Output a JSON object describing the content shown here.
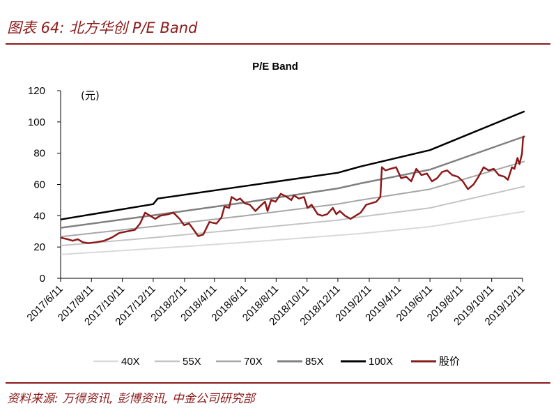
{
  "header": {
    "title": "图表 64:  北方华创 P/E Band"
  },
  "footer": {
    "source": "资料来源: 万得资讯, 彭博资讯, 中金公司研究部"
  },
  "chart_data": {
    "type": "line",
    "title": "P/E Band",
    "unit_label": "(元)",
    "ylim": [
      0,
      120
    ],
    "yticks": [
      0,
      20,
      40,
      60,
      80,
      100,
      120
    ],
    "x_range": [
      "2017-06-11",
      "2019-12-11"
    ],
    "xticks": [
      "2017/6/11",
      "2017/8/11",
      "2017/10/11",
      "2017/12/11",
      "2018/2/11",
      "2018/4/11",
      "2018/6/11",
      "2018/8/11",
      "2018/10/11",
      "2018/12/11",
      "2019/2/11",
      "2019/4/11",
      "2019/6/11",
      "2019/8/11",
      "2019/10/11",
      "2019/12/11"
    ],
    "xtick_dates": [
      "2017-06-11",
      "2017-08-11",
      "2017-10-11",
      "2017-12-11",
      "2018-02-11",
      "2018-04-11",
      "2018-06-11",
      "2018-08-11",
      "2018-10-11",
      "2018-12-11",
      "2019-02-11",
      "2019-04-11",
      "2019-06-11",
      "2019-08-11",
      "2019-10-11",
      "2019-12-11"
    ],
    "grid": false,
    "legend_position": "bottom",
    "series": [
      {
        "name": "40X",
        "color": "#d9d9d9",
        "width": 2,
        "points": [
          [
            "2017-06-11",
            15.2
          ],
          [
            "2017-12-11",
            19.0
          ],
          [
            "2018-06-11",
            23.0
          ],
          [
            "2018-12-11",
            27.5
          ],
          [
            "2019-01-25",
            28.6
          ],
          [
            "2019-06-11",
            33.0
          ],
          [
            "2019-12-15",
            42.8
          ]
        ]
      },
      {
        "name": "55X",
        "color": "#c4c4c4",
        "width": 2,
        "points": [
          [
            "2017-06-11",
            20.9
          ],
          [
            "2017-12-11",
            26.0
          ],
          [
            "2018-06-11",
            31.5
          ],
          [
            "2018-12-11",
            37.2
          ],
          [
            "2019-01-25",
            39.3
          ],
          [
            "2019-06-11",
            45.0
          ],
          [
            "2019-12-15",
            58.8
          ]
        ]
      },
      {
        "name": "70X",
        "color": "#a6a6a6",
        "width": 2,
        "points": [
          [
            "2017-06-11",
            26.6
          ],
          [
            "2017-12-11",
            33.2
          ],
          [
            "2018-06-11",
            40.0
          ],
          [
            "2018-12-11",
            47.5
          ],
          [
            "2019-01-25",
            50.0
          ],
          [
            "2019-06-11",
            57.0
          ],
          [
            "2019-12-15",
            74.8
          ]
        ]
      },
      {
        "name": "85X",
        "color": "#808080",
        "width": 2.5,
        "points": [
          [
            "2017-06-11",
            32.3
          ],
          [
            "2017-12-11",
            40.3
          ],
          [
            "2018-06-11",
            48.5
          ],
          [
            "2018-12-11",
            57.5
          ],
          [
            "2019-01-25",
            60.7
          ],
          [
            "2019-06-11",
            69.5
          ],
          [
            "2019-12-15",
            90.8
          ]
        ]
      },
      {
        "name": "100X",
        "color": "#000000",
        "width": 2.5,
        "points": [
          [
            "2017-06-11",
            37.6
          ],
          [
            "2017-12-11",
            47.4
          ],
          [
            "2017-12-20",
            51.0
          ],
          [
            "2018-06-11",
            59.0
          ],
          [
            "2018-12-11",
            67.5
          ],
          [
            "2019-01-25",
            71.5
          ],
          [
            "2019-06-11",
            82.0
          ],
          [
            "2019-12-15",
            106.8
          ]
        ]
      },
      {
        "name": "股价",
        "color": "#8b1a1a",
        "width": 2.5,
        "points": [
          [
            "2017-06-11",
            26
          ],
          [
            "2017-06-25",
            25
          ],
          [
            "2017-07-05",
            24
          ],
          [
            "2017-07-15",
            25
          ],
          [
            "2017-07-25",
            23
          ],
          [
            "2017-08-05",
            22.5
          ],
          [
            "2017-08-20",
            23
          ],
          [
            "2017-09-05",
            24
          ],
          [
            "2017-09-20",
            26
          ],
          [
            "2017-10-05",
            29
          ],
          [
            "2017-10-20",
            30
          ],
          [
            "2017-11-05",
            31
          ],
          [
            "2017-11-15",
            35
          ],
          [
            "2017-11-25",
            42
          ],
          [
            "2017-12-05",
            40
          ],
          [
            "2017-12-15",
            38
          ],
          [
            "2017-12-25",
            40
          ],
          [
            "2018-01-10",
            41
          ],
          [
            "2018-01-20",
            42
          ],
          [
            "2018-02-01",
            38
          ],
          [
            "2018-02-10",
            34
          ],
          [
            "2018-02-20",
            35
          ],
          [
            "2018-03-01",
            31
          ],
          [
            "2018-03-10",
            27
          ],
          [
            "2018-03-20",
            28
          ],
          [
            "2018-04-01",
            36
          ],
          [
            "2018-04-15",
            35
          ],
          [
            "2018-04-25",
            39
          ],
          [
            "2018-05-01",
            46
          ],
          [
            "2018-05-10",
            45
          ],
          [
            "2018-05-15",
            52
          ],
          [
            "2018-05-25",
            50
          ],
          [
            "2018-06-01",
            51
          ],
          [
            "2018-06-10",
            48
          ],
          [
            "2018-06-20",
            47
          ],
          [
            "2018-07-01",
            43
          ],
          [
            "2018-07-10",
            46
          ],
          [
            "2018-07-20",
            49
          ],
          [
            "2018-07-25",
            43
          ],
          [
            "2018-08-01",
            50
          ],
          [
            "2018-08-10",
            49
          ],
          [
            "2018-08-20",
            54
          ],
          [
            "2018-09-01",
            52
          ],
          [
            "2018-09-10",
            50
          ],
          [
            "2018-09-15",
            53
          ],
          [
            "2018-09-25",
            51
          ],
          [
            "2018-10-05",
            52
          ],
          [
            "2018-10-12",
            45
          ],
          [
            "2018-10-20",
            47
          ],
          [
            "2018-11-01",
            41
          ],
          [
            "2018-11-10",
            40
          ],
          [
            "2018-11-20",
            41
          ],
          [
            "2018-12-01",
            45
          ],
          [
            "2018-12-08",
            41
          ],
          [
            "2018-12-15",
            43
          ],
          [
            "2018-12-25",
            40
          ],
          [
            "2019-01-05",
            38
          ],
          [
            "2019-01-15",
            40
          ],
          [
            "2019-01-25",
            42
          ],
          [
            "2019-02-05",
            47
          ],
          [
            "2019-02-15",
            48
          ],
          [
            "2019-02-25",
            49
          ],
          [
            "2019-03-05",
            52
          ],
          [
            "2019-03-08",
            71
          ],
          [
            "2019-03-15",
            69
          ],
          [
            "2019-03-25",
            70
          ],
          [
            "2019-04-05",
            71
          ],
          [
            "2019-04-15",
            64
          ],
          [
            "2019-04-25",
            65
          ],
          [
            "2019-05-05",
            62
          ],
          [
            "2019-05-15",
            70
          ],
          [
            "2019-05-25",
            66
          ],
          [
            "2019-06-05",
            67
          ],
          [
            "2019-06-15",
            62
          ],
          [
            "2019-06-25",
            64
          ],
          [
            "2019-07-05",
            68
          ],
          [
            "2019-07-15",
            69
          ],
          [
            "2019-07-25",
            66
          ],
          [
            "2019-08-05",
            65
          ],
          [
            "2019-08-15",
            62
          ],
          [
            "2019-08-25",
            57
          ],
          [
            "2019-09-05",
            60
          ],
          [
            "2019-09-15",
            65
          ],
          [
            "2019-09-25",
            71
          ],
          [
            "2019-10-05",
            69
          ],
          [
            "2019-10-15",
            70
          ],
          [
            "2019-10-25",
            66
          ],
          [
            "2019-11-05",
            65
          ],
          [
            "2019-11-12",
            63
          ],
          [
            "2019-11-20",
            71
          ],
          [
            "2019-11-25",
            70
          ],
          [
            "2019-12-01",
            77
          ],
          [
            "2019-12-05",
            73
          ],
          [
            "2019-12-10",
            80
          ],
          [
            "2019-12-12",
            90
          ],
          [
            "2019-12-15",
            91
          ]
        ]
      }
    ]
  }
}
